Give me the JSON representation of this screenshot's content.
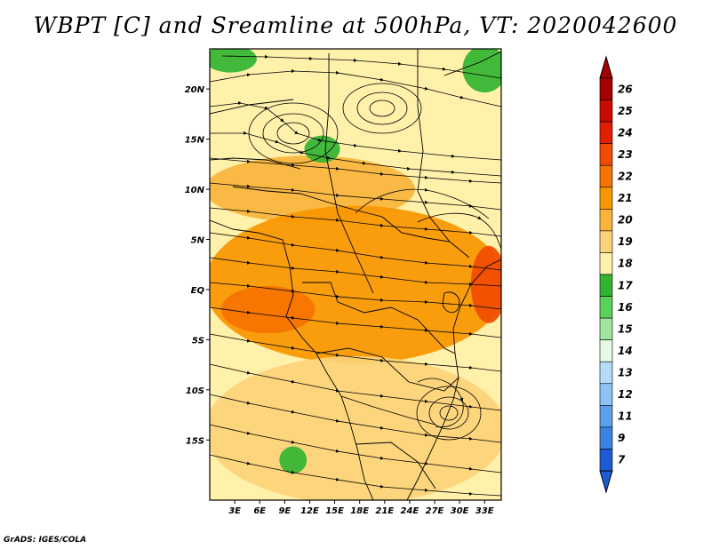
{
  "title": "WBPT [C] and Sreamline at 500hPa, VT: 2020042600",
  "footer": "GrADS: IGES/COLA",
  "map": {
    "lon_range": [
      0,
      35
    ],
    "lat_range": [
      -21,
      24
    ],
    "lat_ticks": [
      {
        "value": 20,
        "label": "20N"
      },
      {
        "value": 15,
        "label": "15N"
      },
      {
        "value": 10,
        "label": "10N"
      },
      {
        "value": 5,
        "label": "5N"
      },
      {
        "value": 0,
        "label": "EQ"
      },
      {
        "value": -5,
        "label": "5S"
      },
      {
        "value": -10,
        "label": "10S"
      },
      {
        "value": -15,
        "label": "15S"
      }
    ],
    "lon_ticks": [
      {
        "value": 3,
        "label": "3E"
      },
      {
        "value": 6,
        "label": "6E"
      },
      {
        "value": 9,
        "label": "9E"
      },
      {
        "value": 12,
        "label": "12E"
      },
      {
        "value": 15,
        "label": "15E"
      },
      {
        "value": 18,
        "label": "18E"
      },
      {
        "value": 21,
        "label": "21E"
      },
      {
        "value": 24,
        "label": "24E"
      },
      {
        "value": 27,
        "label": "27E"
      },
      {
        "value": 30,
        "label": "30E"
      },
      {
        "value": 33,
        "label": "33E"
      }
    ]
  },
  "colorbar": {
    "unit": "C",
    "levels": [
      {
        "label": "26",
        "color": "#a50000"
      },
      {
        "label": "25",
        "color": "#c80a00"
      },
      {
        "label": "24",
        "color": "#e11e00"
      },
      {
        "label": "23",
        "color": "#f04b00"
      },
      {
        "label": "22",
        "color": "#f57300"
      },
      {
        "label": "21",
        "color": "#f89600"
      },
      {
        "label": "20",
        "color": "#fab43c"
      },
      {
        "label": "19",
        "color": "#fcd278"
      },
      {
        "label": "18",
        "color": "#fff0aa"
      },
      {
        "label": "17",
        "color": "#32b432"
      },
      {
        "label": "16",
        "color": "#5ad25a"
      },
      {
        "label": "15",
        "color": "#a0e6a0"
      },
      {
        "label": "14",
        "color": "#e6fae6"
      },
      {
        "label": "13",
        "color": "#b4dcfa"
      },
      {
        "label": "12",
        "color": "#8cc3f5"
      },
      {
        "label": "11",
        "color": "#5aa0eb"
      },
      {
        "label": "9",
        "color": "#3c82e1"
      },
      {
        "label": "7",
        "color": "#1e5ad2"
      }
    ],
    "top_arrow_color": "#a50000",
    "bottom_arrow_color": "#1e5ad2"
  },
  "fields": [
    {
      "name": "wbpt-band-20-north",
      "color": "#fab43c",
      "lon": [
        0,
        24
      ],
      "lat": [
        7,
        13
      ]
    },
    {
      "name": "wbpt-band-21-central",
      "color": "#f89600",
      "lon": [
        0,
        35
      ],
      "lat": [
        -7,
        8
      ]
    },
    {
      "name": "wbpt-band-22-coast",
      "color": "#f57300",
      "lon": [
        2,
        12
      ],
      "lat": [
        -4,
        0
      ]
    },
    {
      "name": "wbpt-band-23-east",
      "color": "#f04b00",
      "lon": [
        32,
        35
      ],
      "lat": [
        -3,
        4
      ]
    },
    {
      "name": "wbpt-band-19-south",
      "color": "#fcd278",
      "lon": [
        0,
        35
      ],
      "lat": [
        -21,
        -7
      ]
    },
    {
      "name": "wbpt-band-17-patch-nw",
      "color": "#32b432",
      "lon": [
        0,
        5
      ],
      "lat": [
        22,
        24
      ]
    },
    {
      "name": "wbpt-band-17-patch-chad",
      "color": "#32b432",
      "lon": [
        12,
        15
      ],
      "lat": [
        13,
        15
      ]
    },
    {
      "name": "wbpt-band-17-patch-ne",
      "color": "#32b432",
      "lon": [
        31,
        35
      ],
      "lat": [
        20,
        24
      ]
    },
    {
      "name": "wbpt-band-17-patch-south",
      "color": "#32b432",
      "lon": [
        9,
        11
      ],
      "lat": [
        -18,
        -16
      ]
    }
  ]
}
